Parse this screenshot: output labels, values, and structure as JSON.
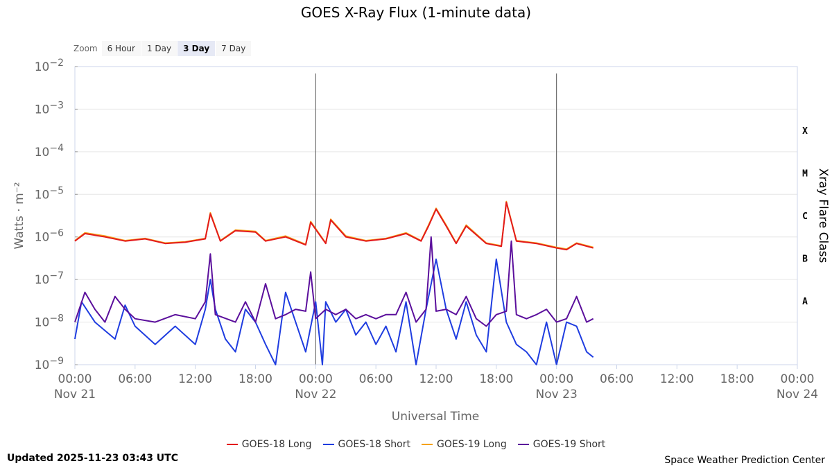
{
  "title": "GOES X-Ray Flux (1-minute data)",
  "zoom": {
    "label": "Zoom",
    "buttons": [
      "6 Hour",
      "1 Day",
      "3 Day",
      "7 Day"
    ],
    "active": "3 Day"
  },
  "footer": {
    "updated": "Updated 2025-11-23 03:43 UTC",
    "credit": "Space Weather Prediction Center"
  },
  "colors": {
    "goes18_long": "#e31a1c",
    "goes18_short": "#1f3de0",
    "goes19_long": "#f5a21b",
    "goes19_short": "#5b0f9c"
  },
  "chart_data": {
    "type": "line",
    "title": "GOES X-Ray Flux (1-minute data)",
    "xlabel": "Universal Time",
    "ylabel": "Watts · m⁻²",
    "y2label": "Xray Flare Class",
    "y_scale": "log",
    "ylim": [
      1e-09,
      0.01
    ],
    "xlim": [
      "2025-11-21 00:00",
      "2025-11-24 00:00"
    ],
    "y_ticks": [
      "10",
      "10",
      "10",
      "10",
      "10",
      "10",
      "10",
      "10"
    ],
    "y_tick_exponents": [
      "−2",
      "−3",
      "−4",
      "−5",
      "−6",
      "−7",
      "−8",
      "−9"
    ],
    "x_tick_times": [
      "00:00",
      "06:00",
      "12:00",
      "18:00",
      "00:00",
      "06:00",
      "12:00",
      "18:00",
      "00:00",
      "06:00",
      "12:00",
      "18:00",
      "00:00"
    ],
    "x_tick_dates": [
      "Nov 21",
      "",
      "",
      "",
      "Nov 22",
      "",
      "",
      "",
      "Nov 23",
      "",
      "",
      "",
      "Nov 24"
    ],
    "flare_classes": [
      "X",
      "M",
      "C",
      "B",
      "A"
    ],
    "day_markers": [
      "2025-11-22 00:00",
      "2025-11-23 00:00"
    ],
    "legend": [
      "GOES-18 Long",
      "GOES-18 Short",
      "GOES-19 Long",
      "GOES-19 Short"
    ],
    "grid": true,
    "legend_position": "bottom",
    "series": [
      {
        "name": "GOES-18 Long",
        "x": [
          "2025-11-21 00:00",
          "2025-11-21 01:00",
          "2025-11-21 03:00",
          "2025-11-21 05:00",
          "2025-11-21 07:00",
          "2025-11-21 09:00",
          "2025-11-21 11:00",
          "2025-11-21 13:00",
          "2025-11-21 13:30",
          "2025-11-21 14:30",
          "2025-11-21 16:00",
          "2025-11-21 18:00",
          "2025-11-21 19:00",
          "2025-11-21 21:00",
          "2025-11-21 23:00",
          "2025-11-21 23:30",
          "2025-11-22 01:00",
          "2025-11-22 01:30",
          "2025-11-22 03:00",
          "2025-11-22 05:00",
          "2025-11-22 07:00",
          "2025-11-22 09:00",
          "2025-11-22 10:30",
          "2025-11-22 11:15",
          "2025-11-22 12:00",
          "2025-11-22 13:00",
          "2025-11-22 14:00",
          "2025-11-22 15:00",
          "2025-11-22 17:00",
          "2025-11-22 18:30",
          "2025-11-22 19:00",
          "2025-11-22 20:00",
          "2025-11-22 22:00",
          "2025-11-23 00:00",
          "2025-11-23 01:00",
          "2025-11-23 02:00",
          "2025-11-23 03:40"
        ],
        "y": [
          8e-07,
          1.2e-06,
          1e-06,
          8e-07,
          9e-07,
          7e-07,
          7.5e-07,
          9e-07,
          3.5e-06,
          8e-07,
          1.4e-06,
          1.3e-06,
          8e-07,
          1e-06,
          6.5e-07,
          2.2e-06,
          7e-07,
          2.5e-06,
          1e-06,
          8e-07,
          9e-07,
          1.2e-06,
          8e-07,
          1.8e-06,
          4.5e-06,
          1.8e-06,
          7e-07,
          1.8e-06,
          7e-07,
          6e-07,
          6.5e-06,
          8e-07,
          7e-07,
          5.5e-07,
          5e-07,
          7e-07,
          5.5e-07
        ]
      },
      {
        "name": "GOES-18 Short",
        "x": [
          "2025-11-21 00:00",
          "2025-11-21 00:40",
          "2025-11-21 02:00",
          "2025-11-21 04:00",
          "2025-11-21 05:00",
          "2025-11-21 06:00",
          "2025-11-21 08:00",
          "2025-11-21 10:00",
          "2025-11-21 12:00",
          "2025-11-21 13:00",
          "2025-11-21 13:30",
          "2025-11-21 14:00",
          "2025-11-21 15:00",
          "2025-11-21 16:00",
          "2025-11-21 17:00",
          "2025-11-21 18:00",
          "2025-11-21 19:00",
          "2025-11-21 20:00",
          "2025-11-21 21:00",
          "2025-11-21 22:00",
          "2025-11-21 23:00",
          "2025-11-22 00:00",
          "2025-11-22 00:40",
          "2025-11-22 01:00",
          "2025-11-22 02:00",
          "2025-11-22 03:00",
          "2025-11-22 04:00",
          "2025-11-22 05:00",
          "2025-11-22 06:00",
          "2025-11-22 07:00",
          "2025-11-22 08:00",
          "2025-11-22 09:00",
          "2025-11-22 10:00",
          "2025-11-22 11:00",
          "2025-11-22 12:00",
          "2025-11-22 13:00",
          "2025-11-22 14:00",
          "2025-11-22 15:00",
          "2025-11-22 16:00",
          "2025-11-22 17:00",
          "2025-11-22 18:00",
          "2025-11-22 19:00",
          "2025-11-22 20:00",
          "2025-11-22 21:00",
          "2025-11-22 22:00",
          "2025-11-22 23:00",
          "2025-11-23 00:00",
          "2025-11-23 01:00",
          "2025-11-23 02:00",
          "2025-11-23 03:00",
          "2025-11-23 03:40"
        ],
        "y": [
          4e-09,
          3e-08,
          1e-08,
          4e-09,
          2.5e-08,
          8e-09,
          3e-09,
          8e-09,
          3e-09,
          2e-08,
          1e-07,
          2e-08,
          4e-09,
          2e-09,
          2e-08,
          1e-08,
          3e-09,
          1e-09,
          5e-08,
          1e-08,
          2e-09,
          3e-08,
          1e-09,
          3e-08,
          1e-08,
          2e-08,
          5e-09,
          1e-08,
          3e-09,
          8e-09,
          2e-09,
          3e-08,
          1e-09,
          2e-08,
          3e-07,
          2e-08,
          4e-09,
          3e-08,
          5e-09,
          2e-09,
          3e-07,
          1e-08,
          3e-09,
          2e-09,
          1e-09,
          1e-08,
          1e-09,
          1e-08,
          8e-09,
          2e-09,
          1.5e-09
        ]
      },
      {
        "name": "GOES-19 Long",
        "x": [
          "2025-11-21 00:00",
          "2025-11-21 01:00",
          "2025-11-21 03:00",
          "2025-11-21 05:00",
          "2025-11-21 07:00",
          "2025-11-21 09:00",
          "2025-11-21 11:00",
          "2025-11-21 13:00",
          "2025-11-21 13:30",
          "2025-11-21 14:30",
          "2025-11-21 16:00",
          "2025-11-21 18:00",
          "2025-11-21 19:00",
          "2025-11-21 21:00",
          "2025-11-21 23:00",
          "2025-11-21 23:30",
          "2025-11-22 01:00",
          "2025-11-22 01:30",
          "2025-11-22 03:00",
          "2025-11-22 05:00",
          "2025-11-22 07:00",
          "2025-11-22 09:00",
          "2025-11-22 10:30",
          "2025-11-22 11:15",
          "2025-11-22 12:00",
          "2025-11-22 13:00",
          "2025-11-22 14:00",
          "2025-11-22 15:00",
          "2025-11-22 17:00",
          "2025-11-22 18:30",
          "2025-11-22 19:00",
          "2025-11-22 20:00",
          "2025-11-22 22:00",
          "2025-11-23 00:00",
          "2025-11-23 01:00",
          "2025-11-23 02:00",
          "2025-11-23 03:40"
        ],
        "y": [
          8.2e-07,
          1.25e-06,
          1.05e-06,
          8.2e-07,
          9.2e-07,
          7.2e-07,
          7.7e-07,
          9.2e-07,
          3.7e-06,
          8.2e-07,
          1.45e-06,
          1.35e-06,
          8.2e-07,
          1.05e-06,
          6.7e-07,
          2.3e-06,
          7.2e-07,
          2.6e-06,
          1.05e-06,
          8.2e-07,
          9.2e-07,
          1.25e-06,
          8.2e-07,
          1.9e-06,
          4.7e-06,
          1.9e-06,
          7.2e-07,
          1.9e-06,
          7.2e-07,
          6.2e-07,
          6.8e-06,
          8.2e-07,
          7.2e-07,
          5.7e-07,
          5.2e-07,
          7.2e-07,
          5.7e-07
        ]
      },
      {
        "name": "GOES-19 Short",
        "x": [
          "2025-11-21 00:00",
          "2025-11-21 01:00",
          "2025-11-21 02:00",
          "2025-11-21 03:00",
          "2025-11-21 04:00",
          "2025-11-21 05:00",
          "2025-11-21 06:00",
          "2025-11-21 08:00",
          "2025-11-21 10:00",
          "2025-11-21 12:00",
          "2025-11-21 13:00",
          "2025-11-21 13:30",
          "2025-11-21 14:00",
          "2025-11-21 16:00",
          "2025-11-21 17:00",
          "2025-11-21 18:00",
          "2025-11-21 19:00",
          "2025-11-21 20:00",
          "2025-11-21 21:00",
          "2025-11-21 22:00",
          "2025-11-21 23:00",
          "2025-11-21 23:30",
          "2025-11-22 00:00",
          "2025-11-22 01:00",
          "2025-11-22 02:00",
          "2025-11-22 03:00",
          "2025-11-22 04:00",
          "2025-11-22 05:00",
          "2025-11-22 06:00",
          "2025-11-22 07:00",
          "2025-11-22 08:00",
          "2025-11-22 09:00",
          "2025-11-22 10:00",
          "2025-11-22 11:00",
          "2025-11-22 11:30",
          "2025-11-22 12:00",
          "2025-11-22 13:00",
          "2025-11-22 14:00",
          "2025-11-22 15:00",
          "2025-11-22 16:00",
          "2025-11-22 17:00",
          "2025-11-22 18:00",
          "2025-11-22 19:00",
          "2025-11-22 19:30",
          "2025-11-22 20:00",
          "2025-11-22 21:00",
          "2025-11-22 22:00",
          "2025-11-22 23:00",
          "2025-11-23 00:00",
          "2025-11-23 01:00",
          "2025-11-23 02:00",
          "2025-11-23 03:00",
          "2025-11-23 03:40"
        ],
        "y": [
          1e-08,
          5e-08,
          2e-08,
          1e-08,
          4e-08,
          2e-08,
          1.2e-08,
          1e-08,
          1.5e-08,
          1.2e-08,
          3e-08,
          4e-07,
          1.5e-08,
          1e-08,
          3e-08,
          1e-08,
          8e-08,
          1.2e-08,
          1.5e-08,
          2e-08,
          1.8e-08,
          1.5e-07,
          1.2e-08,
          2e-08,
          1.5e-08,
          2e-08,
          1.2e-08,
          1.5e-08,
          1.2e-08,
          1.5e-08,
          1.5e-08,
          5e-08,
          1e-08,
          2e-08,
          1e-06,
          1.8e-08,
          2e-08,
          1.5e-08,
          4e-08,
          1.2e-08,
          8e-09,
          1.5e-08,
          1.8e-08,
          8e-07,
          1.5e-08,
          1.2e-08,
          1.5e-08,
          2e-08,
          1e-08,
          1.2e-08,
          4e-08,
          1e-08,
          1.2e-08
        ]
      }
    ]
  }
}
